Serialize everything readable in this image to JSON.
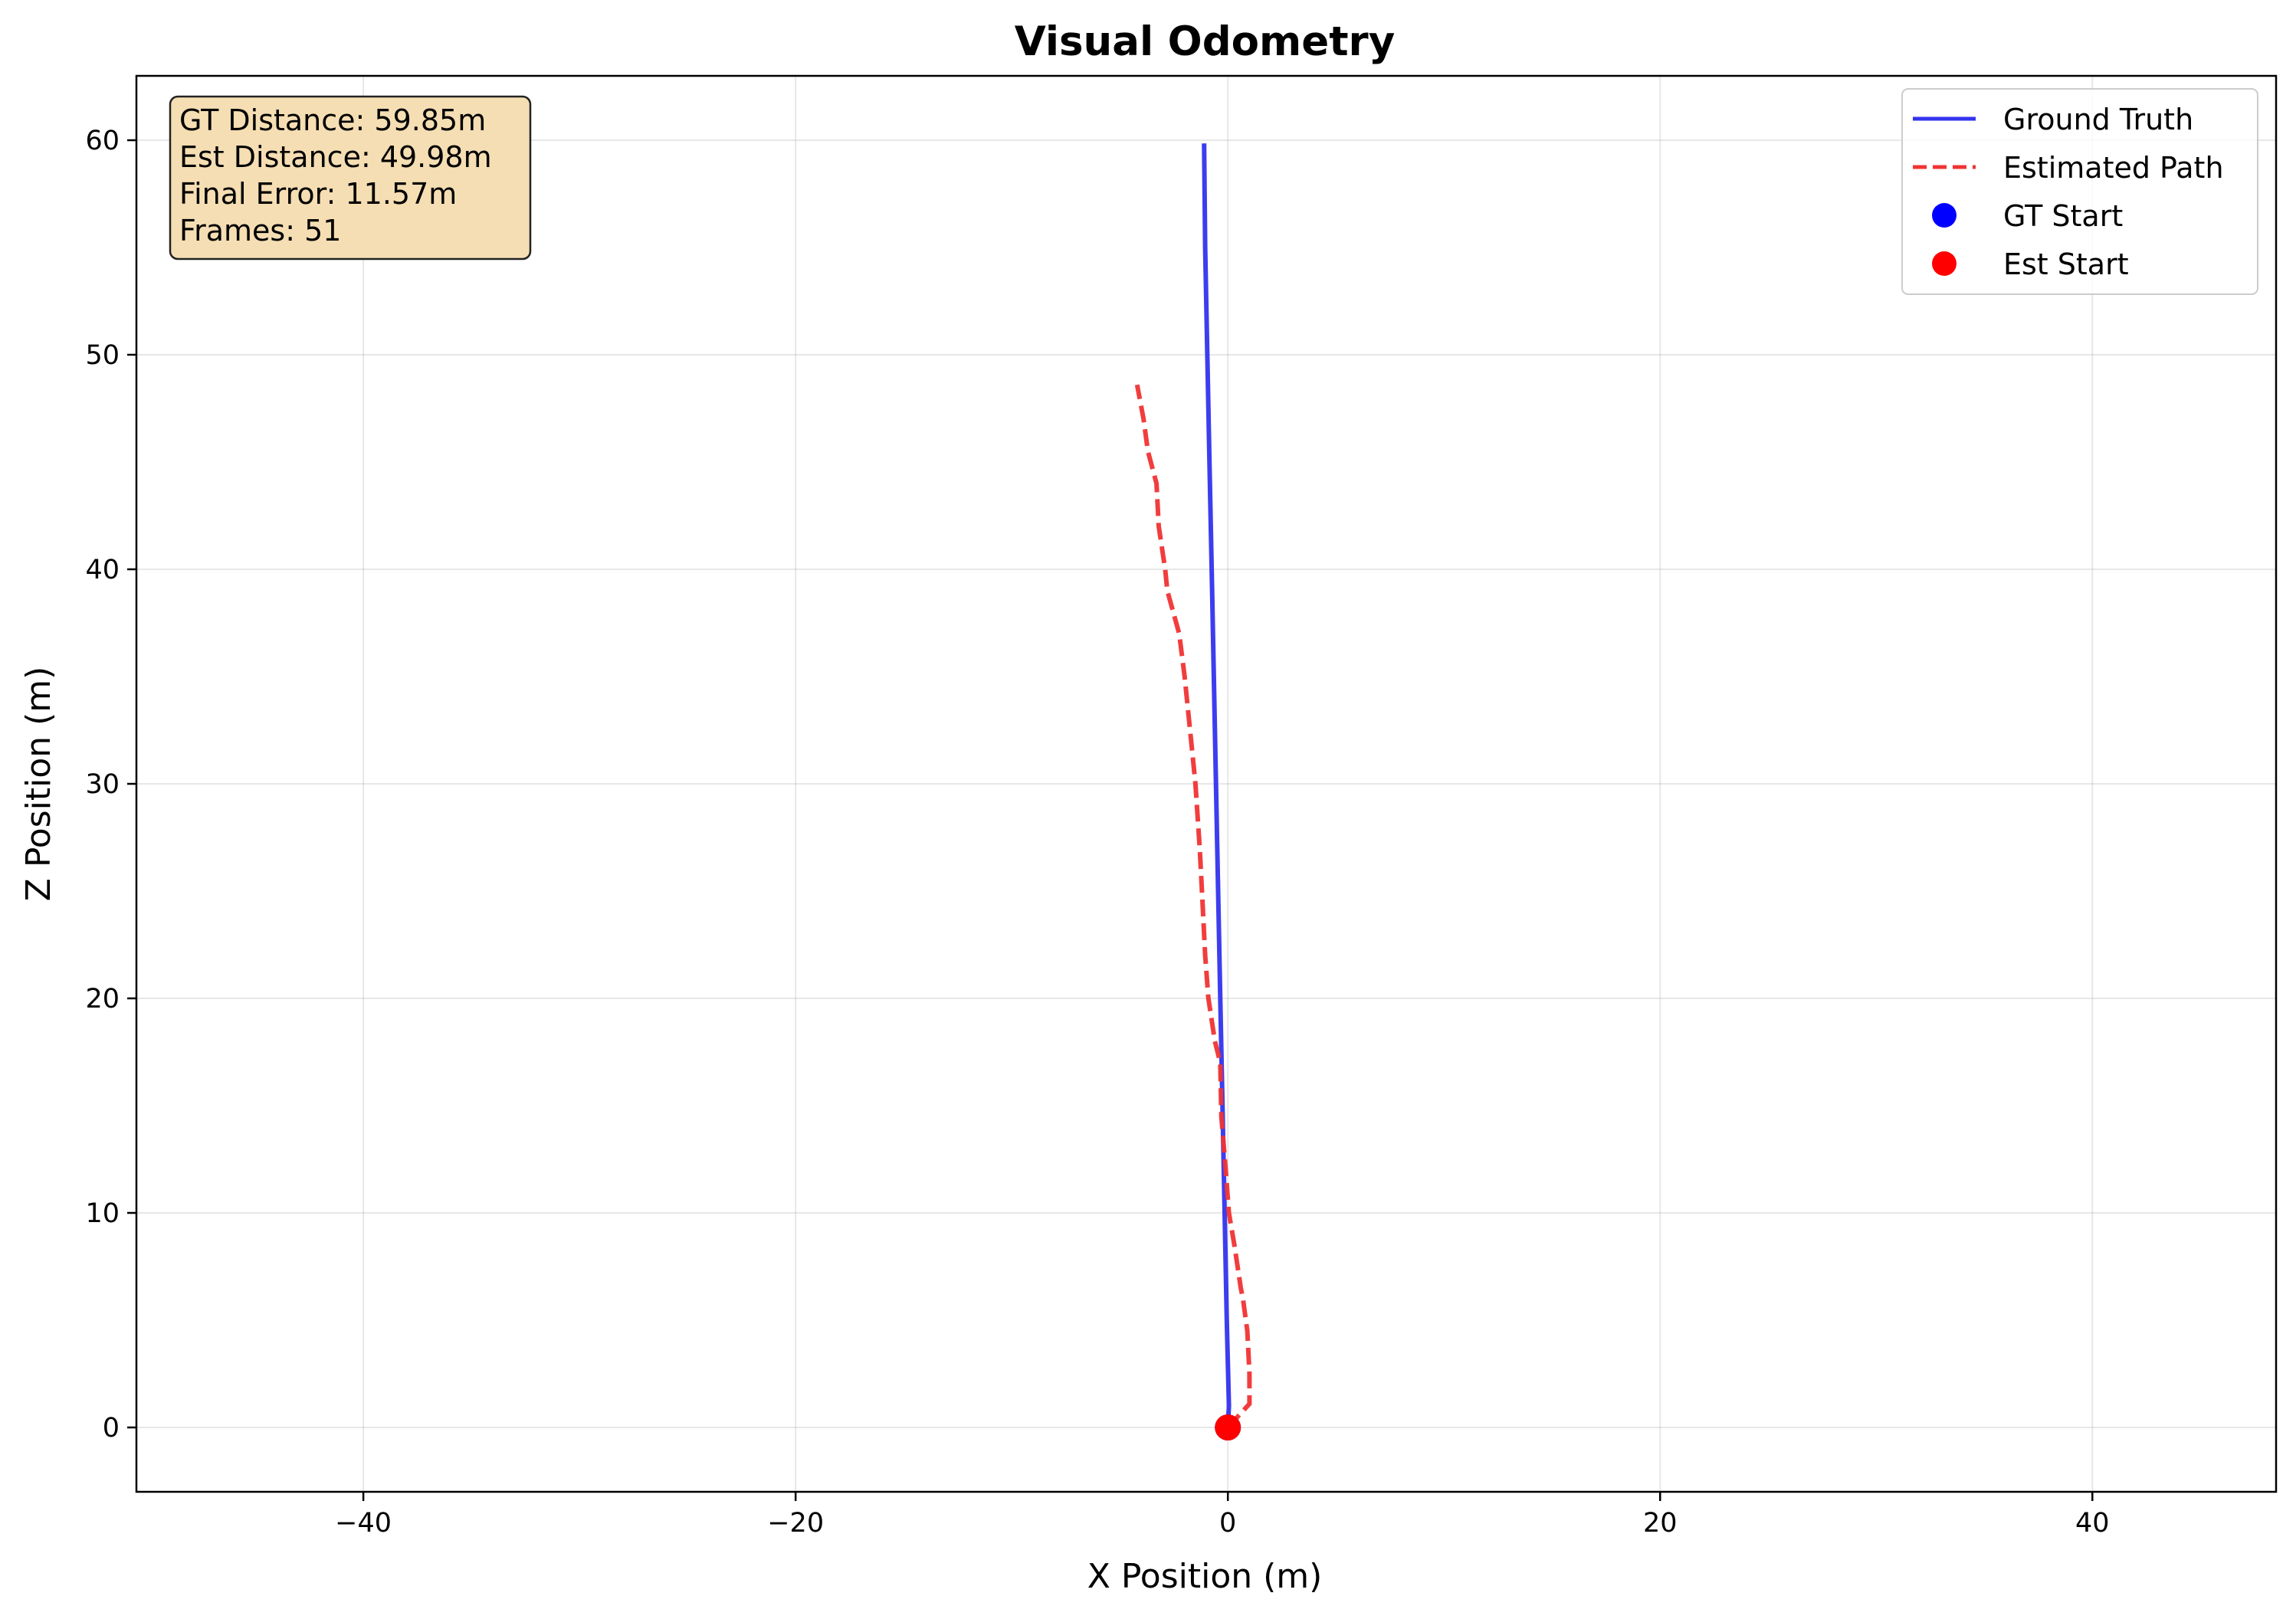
{
  "chart_data": {
    "type": "line",
    "title": "Visual Odometry",
    "xlabel": "X Position (m)",
    "ylabel": "Z Position (m)",
    "xlim": [
      -50.5,
      48.5
    ],
    "ylim": [
      -3,
      63
    ],
    "xticks": [
      -40,
      -20,
      0,
      20,
      40
    ],
    "xtick_labels": [
      "−40",
      "−20",
      "0",
      "20",
      "40"
    ],
    "yticks": [
      0,
      10,
      20,
      30,
      40,
      50,
      60
    ],
    "ytick_labels": [
      "0",
      "10",
      "20",
      "30",
      "40",
      "50",
      "60"
    ],
    "grid": true,
    "legend_position": "top-right",
    "series": [
      {
        "name": "Ground Truth",
        "style": "solid",
        "color": "#3333ee",
        "points": [
          [
            0.0,
            0.0
          ],
          [
            0.05,
            1.0
          ],
          [
            -0.05,
            5.0
          ],
          [
            -0.15,
            10.0
          ],
          [
            -0.25,
            15.0
          ],
          [
            -0.35,
            20.0
          ],
          [
            -0.45,
            25.0
          ],
          [
            -0.55,
            30.0
          ],
          [
            -0.65,
            35.0
          ],
          [
            -0.75,
            40.0
          ],
          [
            -0.85,
            45.0
          ],
          [
            -0.95,
            50.0
          ],
          [
            -1.05,
            55.0
          ],
          [
            -1.1,
            59.85
          ]
        ]
      },
      {
        "name": "Estimated Path",
        "style": "dashed",
        "color": "#f03333",
        "points": [
          [
            0.0,
            0.0
          ],
          [
            1.0,
            1.1
          ],
          [
            1.0,
            2.5
          ],
          [
            0.9,
            4.5
          ],
          [
            0.7,
            6.0
          ],
          [
            0.6,
            6.5
          ],
          [
            0.3,
            8.5
          ],
          [
            0.05,
            10.0
          ],
          [
            -0.1,
            12.0
          ],
          [
            -0.3,
            14.5
          ],
          [
            -0.35,
            17.0
          ],
          [
            -0.6,
            18.0
          ],
          [
            -0.9,
            20.0
          ],
          [
            -1.05,
            22.0
          ],
          [
            -1.2,
            25.0
          ],
          [
            -1.3,
            27.0
          ],
          [
            -1.5,
            30.0
          ],
          [
            -1.7,
            32.0
          ],
          [
            -2.0,
            35.0
          ],
          [
            -2.25,
            37.0
          ],
          [
            -2.8,
            39.0
          ],
          [
            -2.9,
            40.0
          ],
          [
            -3.2,
            42.0
          ],
          [
            -3.3,
            44.0
          ],
          [
            -3.7,
            45.5
          ],
          [
            -3.9,
            47.0
          ],
          [
            -4.2,
            48.6
          ]
        ]
      }
    ],
    "markers": [
      {
        "name": "GT Start",
        "color": "#0000ff",
        "x": 0.0,
        "y": 0.0
      },
      {
        "name": "Est Start",
        "color": "#ff0000",
        "x": 0.0,
        "y": 0.0
      }
    ],
    "annotation": {
      "lines": [
        "GT Distance: 59.85m",
        "Est Distance: 49.98m",
        "Final Error: 11.57m",
        "Frames: 51"
      ],
      "background": "#f5deb3",
      "position": "top-left"
    }
  }
}
